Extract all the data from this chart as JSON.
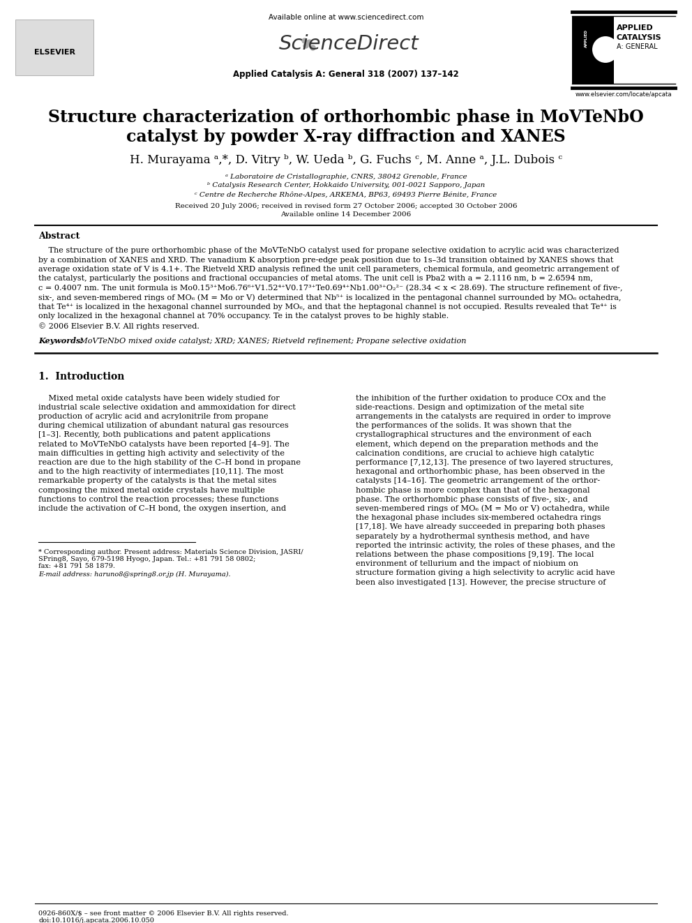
{
  "bg_color": "#ffffff",
  "available_online": "Available online at www.sciencedirect.com",
  "journal_info": "Applied Catalysis A: General 318 (2007) 137–142",
  "website": "www.elsevier.com/locate/apcata",
  "journal_name_top": "APPLIED",
  "journal_name_mid": "CATALYSIS",
  "journal_name_bot": "A: GENERAL",
  "title_line1": "Structure characterization of orthorhombic phase in MoVTeNbO",
  "title_line2": "catalyst by powder X-ray diffraction and XANES",
  "affil1": "a Laboratoire de Cristallographie, CNRS, 38042 Grenoble, France",
  "affil2": "b Catalysis Research Center, Hokkaido University, 001-0021 Sapporo, Japan",
  "affil3": "c Centre de Recherche Rhône-Alpes, ARKEMA, BP63, 69493 Pierre Bénite, France",
  "received": "Received 20 July 2006; received in revised form 27 October 2006; accepted 30 October 2006",
  "online": "Available online 14 December 2006",
  "abstract_title": "Abstract",
  "keywords_label": "Keywords:",
  "keywords_text": "  MoVTeNbO mixed oxide catalyst; XRD; XANES; Rietveld refinement; Propane selective oxidation",
  "intro_title": "1.  Introduction",
  "footer_left": "0926-860X/$ – see front matter © 2006 Elsevier B.V. All rights reserved.",
  "footer_doi": "doi:10.1016/j.apcata.2006.10.050",
  "footnote1": "* Corresponding author. Present address: Materials Science Division, JASRI/",
  "footnote2": "SPring8, Sayo, 679-5198 Hyogo, Japan. Tel.: +81 791 58 0802;",
  "footnote3": "fax: +81 791 58 1879.",
  "footnote_email": "E-mail address: haruno8@spring8.or.jp (H. Murayama).",
  "abstract_col1_lines": [
    "    The structure of the pure orthorhombic phase of the MoVTeNbO catalyst used for propane selective oxidation to acrylic acid was characterized",
    "by a combination of XANES and XRD. The vanadium K absorption pre-edge peak position due to 1s–3d transition obtained by XANES shows that",
    "average oxidation state of V is 4.1+. The Rietveld XRD analysis refined the unit cell parameters, chemical formula, and geometric arrangement of",
    "the catalyst, particularly the positions and fractional occupancies of metal atoms. The unit cell is Pba2 with a = 2.1116 nm, b = 2.6594 nm,",
    "c = 0.4007 nm. The unit formula is Mo0.15³⁺Mo6.76⁶⁺V1.52⁴⁺V0.17³⁺Te0.69⁴⁺Nb1.00³⁺O₂²⁻ (28.34 < x < 28.69). The structure refinement of five-,",
    "six-, and seven-membered rings of MO₆ (M = Mo or V) determined that Nb⁵⁺ is localized in the pentagonal channel surrounded by MO₆ octahedra,",
    "that Te⁴⁺ is localized in the hexagonal channel surrounded by MO₆, and that the heptagonal channel is not occupied. Results revealed that Te⁴⁺ is",
    "only localized in the hexagonal channel at 70% occupancy. Te in the catalyst proves to be highly stable.",
    "© 2006 Elsevier B.V. All rights reserved."
  ],
  "intro_col1_lines": [
    "    Mixed metal oxide catalysts have been widely studied for",
    "industrial scale selective oxidation and ammoxidation for direct",
    "production of acrylic acid and acrylonitrile from propane",
    "during chemical utilization of abundant natural gas resources",
    "[1–3]. Recently, both publications and patent applications",
    "related to MoVTeNbO catalysts have been reported [4–9]. The",
    "main difficulties in getting high activity and selectivity of the",
    "reaction are due to the high stability of the C–H bond in propane",
    "and to the high reactivity of intermediates [10,11]. The most",
    "remarkable property of the catalysts is that the metal sites",
    "composing the mixed metal oxide crystals have multiple",
    "functions to control the reaction processes; these functions",
    "include the activation of C–H bond, the oxygen insertion, and"
  ],
  "intro_col2_lines": [
    "the inhibition of the further oxidation to produce COx and the",
    "side-reactions. Design and optimization of the metal site",
    "arrangements in the catalysts are required in order to improve",
    "the performances of the solids. It was shown that the",
    "crystallographical structures and the environment of each",
    "element, which depend on the preparation methods and the",
    "calcination conditions, are crucial to achieve high catalytic",
    "performance [7,12,13]. The presence of two layered structures,",
    "hexagonal and orthorhombic phase, has been observed in the",
    "catalysts [14–16]. The geometric arrangement of the orthor-",
    "hombic phase is more complex than that of the hexagonal",
    "phase. The orthorhombic phase consists of five-, six-, and",
    "seven-membered rings of MO₆ (M = Mo or V) octahedra, while",
    "the hexagonal phase includes six-membered octahedra rings",
    "[17,18]. We have already succeeded in preparing both phases",
    "separately by a hydrothermal synthesis method, and have",
    "reported the intrinsic activity, the roles of these phases, and the",
    "relations between the phase compositions [9,19]. The local",
    "environment of tellurium and the impact of niobium on",
    "structure formation giving a high selectivity to acrylic acid have",
    "been also investigated [13]. However, the precise structure of"
  ]
}
